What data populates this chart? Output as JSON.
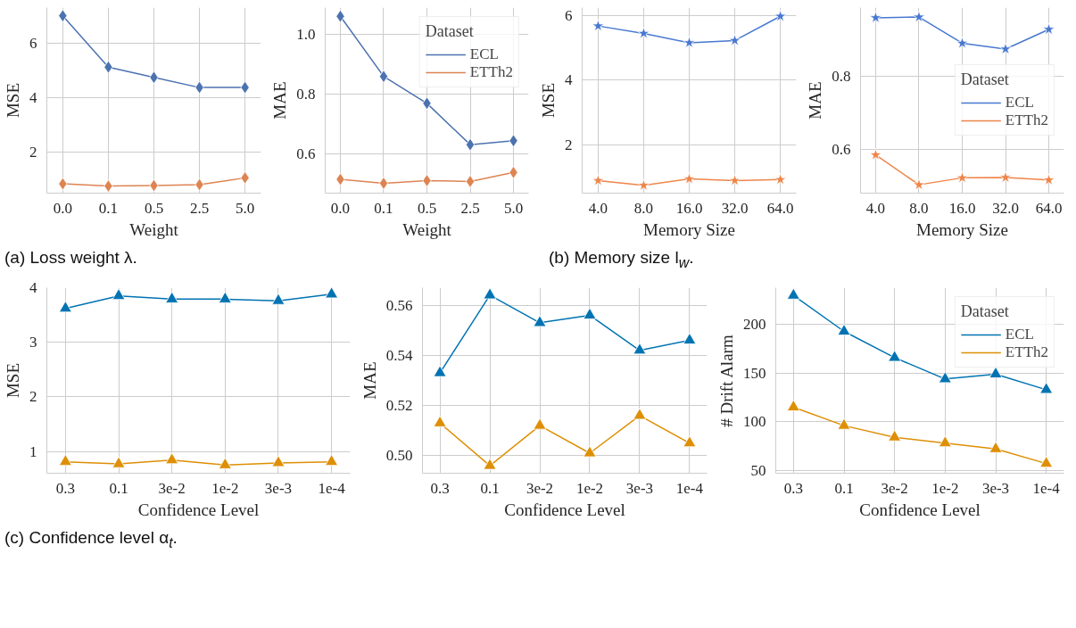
{
  "chart_data": [
    {
      "type": "line",
      "categories": [
        "0.0",
        "0.1",
        "0.5",
        "2.5",
        "5.0"
      ],
      "xlabel": "Weight",
      "ylabel": "MSE",
      "ylim": [
        0.5,
        7.3
      ],
      "yticks": [
        2,
        4,
        6
      ],
      "grid": true,
      "legend": false,
      "marker": "diamond",
      "line_style": "solid",
      "series": [
        {
          "color": "#4c72b0",
          "values": [
            7.0,
            5.12,
            4.74,
            4.37,
            4.37
          ]
        },
        {
          "color": "#dd8452",
          "values": [
            0.84,
            0.76,
            0.78,
            0.81,
            1.06
          ]
        }
      ],
      "annotations": [
        "(a) Loss weight λ."
      ]
    },
    {
      "type": "line",
      "categories": [
        "0.0",
        "0.1",
        "0.5",
        "2.5",
        "5.0"
      ],
      "xlabel": "Weight",
      "ylabel": "MAE",
      "ylim": [
        0.47,
        1.09
      ],
      "yticks": [
        0.6,
        0.8,
        {
          "value": 1,
          "label": "1.0"
        }
      ],
      "grid": true,
      "legend": "top right",
      "legend_title": "Dataset",
      "marker": "diamond",
      "line_style": "solid",
      "series": [
        {
          "name": "ECL",
          "color": "#4c72b0",
          "values": [
            1.061,
            0.86,
            0.77,
            0.632,
            0.645
          ]
        },
        {
          "name": "ETTh2",
          "color": "#dd8452",
          "values": [
            0.516,
            0.503,
            0.512,
            0.509,
            0.539
          ]
        }
      ]
    },
    {
      "type": "line",
      "categories": [
        "4.0",
        "8.0",
        "16.0",
        "32.0",
        "64.0"
      ],
      "xlabel": "Memory Size",
      "ylabel": "MSE",
      "ylim": [
        0.5,
        6.25
      ],
      "yticks": [
        2,
        4,
        6
      ],
      "grid": true,
      "legend": false,
      "marker": "star",
      "line_style": "solid",
      "series": [
        {
          "color": "#4878d0",
          "values": [
            5.68,
            5.45,
            5.16,
            5.23,
            5.98
          ]
        },
        {
          "color": "#ee854a",
          "values": [
            0.89,
            0.74,
            0.94,
            0.89,
            0.92
          ]
        }
      ],
      "annotations": [
        "(b) Memory size l$_{w}$."
      ]
    },
    {
      "type": "line",
      "categories": [
        "4.0",
        "8.0",
        "16.0",
        "32.0",
        "64.0"
      ],
      "xlabel": "Memory Size",
      "ylabel": "MAE",
      "ylim": [
        0.48,
        0.99
      ],
      "yticks": [
        0.6,
        0.8
      ],
      "grid": true,
      "legend": "right",
      "legend_title": "Dataset",
      "marker": "star",
      "line_style": "solid",
      "series": [
        {
          "name": "ECL",
          "color": "#4878d0",
          "values": [
            0.962,
            0.964,
            0.892,
            0.876,
            0.93
          ]
        },
        {
          "name": "ETTh2",
          "color": "#ee854a",
          "values": [
            0.585,
            0.503,
            0.522,
            0.523,
            0.516
          ]
        }
      ]
    },
    {
      "type": "line",
      "categories": [
        "0.3",
        "0.1",
        "3e-2",
        "1e-2",
        "3e-3",
        "1e-4"
      ],
      "xlabel": "Confidence Level",
      "ylabel": "MSE",
      "ylim": [
        0.6,
        4.0
      ],
      "yticks": [
        1,
        2,
        3,
        4
      ],
      "grid": true,
      "legend": false,
      "marker": "triangle",
      "line_style": "solid",
      "series": [
        {
          "color": "#0173b2",
          "values": [
            3.62,
            3.85,
            3.79,
            3.79,
            3.76,
            3.88
          ]
        },
        {
          "color": "#de8f05",
          "values": [
            0.81,
            0.77,
            0.84,
            0.75,
            0.79,
            0.81
          ]
        }
      ],
      "annotations": [
        "(c) Confidence level α$_{t}$."
      ]
    },
    {
      "type": "line",
      "categories": [
        "0.3",
        "0.1",
        "3e-2",
        "1e-2",
        "3e-3",
        "1e-4"
      ],
      "xlabel": "Confidence Level",
      "ylabel": "MAE",
      "ylim": [
        0.493,
        0.567
      ],
      "yticks": [
        {
          "value": 0.5,
          "label": "0.50"
        },
        0.52,
        0.54,
        0.56
      ],
      "grid": true,
      "legend": false,
      "marker": "triangle",
      "line_style": "solid",
      "series": [
        {
          "color": "#0173b2",
          "values": [
            0.533,
            0.564,
            0.553,
            0.556,
            0.542,
            0.546
          ]
        },
        {
          "color": "#de8f05",
          "values": [
            0.513,
            0.496,
            0.512,
            0.501,
            0.516,
            0.505
          ]
        }
      ]
    },
    {
      "type": "line",
      "categories": [
        "0.3",
        "0.1",
        "3e-2",
        "1e-2",
        "3e-3",
        "1e-4"
      ],
      "xlabel": "Confidence Level",
      "ylabel": "# Drift Alarm",
      "ylim": [
        47,
        238
      ],
      "yticks": [
        50,
        100,
        150,
        200
      ],
      "grid": true,
      "legend": "top right",
      "legend_title": "Dataset",
      "marker": "triangle",
      "line_style": "solid",
      "series": [
        {
          "name": "ECL",
          "color": "#0173b2",
          "values": [
            230,
            193,
            166,
            144,
            149,
            133
          ]
        },
        {
          "name": "ETTh2",
          "color": "#de8f05",
          "values": [
            115,
            96,
            84,
            78,
            72,
            57
          ]
        }
      ]
    }
  ]
}
